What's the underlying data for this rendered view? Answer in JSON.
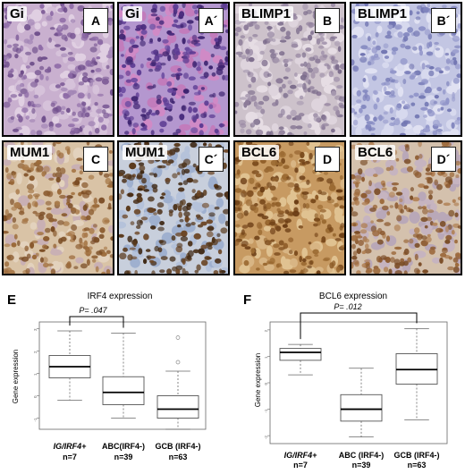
{
  "panels": [
    {
      "stain": "Gi",
      "letter": "A",
      "palette": "he"
    },
    {
      "stain": "Gi",
      "letter": "A´",
      "palette": "he2"
    },
    {
      "stain": "BLIMP1",
      "letter": "B",
      "palette": "neg"
    },
    {
      "stain": "BLIMP1",
      "letter": "B´",
      "palette": "neg2"
    },
    {
      "stain": "MUM1",
      "letter": "C",
      "palette": "mum"
    },
    {
      "stain": "MUM1",
      "letter": "C´",
      "palette": "mum2"
    },
    {
      "stain": "BCL6",
      "letter": "D",
      "palette": "bcl"
    },
    {
      "stain": "BCL6",
      "letter": "D´",
      "palette": "bcl2"
    }
  ],
  "chart_data": [
    {
      "type": "box",
      "panel_letter": "E",
      "title": "IRF4 expression",
      "ylabel": "Gene expression",
      "ylim": [
        -1.5,
        3.3
      ],
      "yticks": [
        -1,
        0,
        1,
        2,
        3
      ],
      "categories": [
        {
          "label": "IG/IRF4+",
          "italic": true,
          "n": "n=7"
        },
        {
          "label": "ABC(IRF4-)",
          "italic": false,
          "n": "n=39"
        },
        {
          "label": "GCB (IRF4-)",
          "italic": false,
          "n": "n=63"
        }
      ],
      "boxes": [
        {
          "wlo": -0.2,
          "q1": 0.8,
          "med": 1.3,
          "q3": 1.8,
          "whi": 2.9,
          "outliers": []
        },
        {
          "wlo": -1.0,
          "q1": -0.4,
          "med": 0.15,
          "q3": 0.85,
          "whi": 2.8,
          "outliers": []
        },
        {
          "wlo": -1.5,
          "q1": -1.0,
          "med": -0.6,
          "q3": 0.0,
          "whi": 1.1,
          "outliers": [
            1.5,
            2.6
          ]
        }
      ],
      "significance": {
        "from": 0,
        "to": 1,
        "label": "P= .047"
      }
    },
    {
      "type": "box",
      "panel_letter": "F",
      "title": "BCL6 expression",
      "ylabel": "Gene expression",
      "ylim": [
        -2.3,
        2.3
      ],
      "yticks": [
        -2,
        -1,
        0,
        1,
        2
      ],
      "categories": [
        {
          "label": "IG/IRF4+",
          "italic": true,
          "n": "n=7"
        },
        {
          "label": "ABC (IRF4-)",
          "italic": false,
          "n": "n=39"
        },
        {
          "label": "GCB (IRF4-)",
          "italic": false,
          "n": "n=63"
        }
      ],
      "boxes": [
        {
          "wlo": 0.3,
          "q1": 0.85,
          "med": 1.15,
          "q3": 1.3,
          "whi": 1.45,
          "outliers": []
        },
        {
          "wlo": -2.05,
          "q1": -1.45,
          "med": -1.0,
          "q3": -0.45,
          "whi": 0.55,
          "outliers": []
        },
        {
          "wlo": -1.4,
          "q1": -0.05,
          "med": 0.5,
          "q3": 1.1,
          "whi": 2.05,
          "outliers": []
        }
      ],
      "significance": {
        "from": 0,
        "to": 2,
        "label": "P= .012"
      }
    }
  ]
}
